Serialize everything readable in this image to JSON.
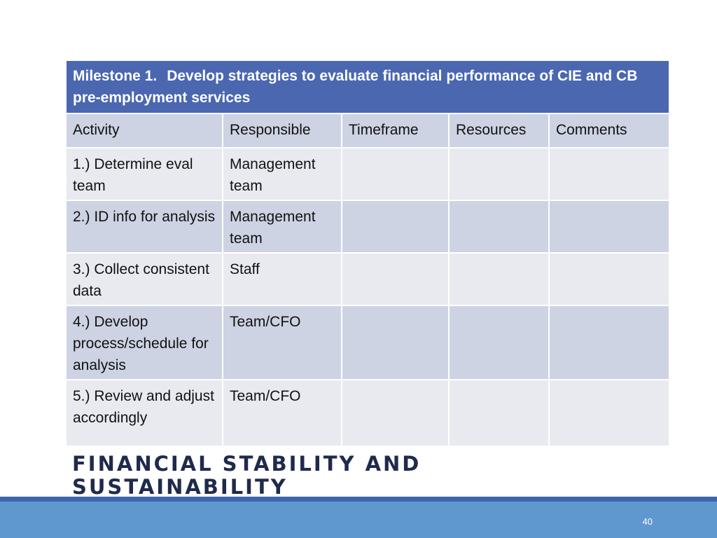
{
  "slide": {
    "milestone_label": "Milestone 1.",
    "milestone_text": "Develop strategies to evaluate financial performance of CIE and CB pre-employment services",
    "columns": [
      "Activity",
      "Responsible",
      "Timeframe",
      "Resources",
      "Comments"
    ],
    "rows": [
      {
        "activity": "1.) Determine eval team",
        "responsible": "Management team",
        "timeframe": "",
        "resources": "",
        "comments": ""
      },
      {
        "activity": "2.) ID info for analysis",
        "responsible": "Management team",
        "timeframe": "",
        "resources": "",
        "comments": ""
      },
      {
        "activity": "3.) Collect consistent data",
        "responsible": "Staff",
        "timeframe": "",
        "resources": "",
        "comments": ""
      },
      {
        "activity": "4.) Develop process/schedule for analysis",
        "responsible": "Team/CFO",
        "timeframe": "",
        "resources": "",
        "comments": ""
      },
      {
        "activity": "5.) Review and adjust accordingly",
        "responsible": "Team/CFO",
        "timeframe": "",
        "resources": "",
        "comments": ""
      }
    ],
    "footer_title": "FINANCIAL STABILITY AND SUSTAINABILITY",
    "page_number": "40"
  },
  "colors": {
    "title_bg": "#4a67b0",
    "header_bg": "#cdd3e3",
    "row_light": "#e8eaf0",
    "row_dark": "#cdd3e3",
    "band_dark": "#3f63ad",
    "band_light": "#5f98ce",
    "footer_text": "#1f2a4d"
  }
}
